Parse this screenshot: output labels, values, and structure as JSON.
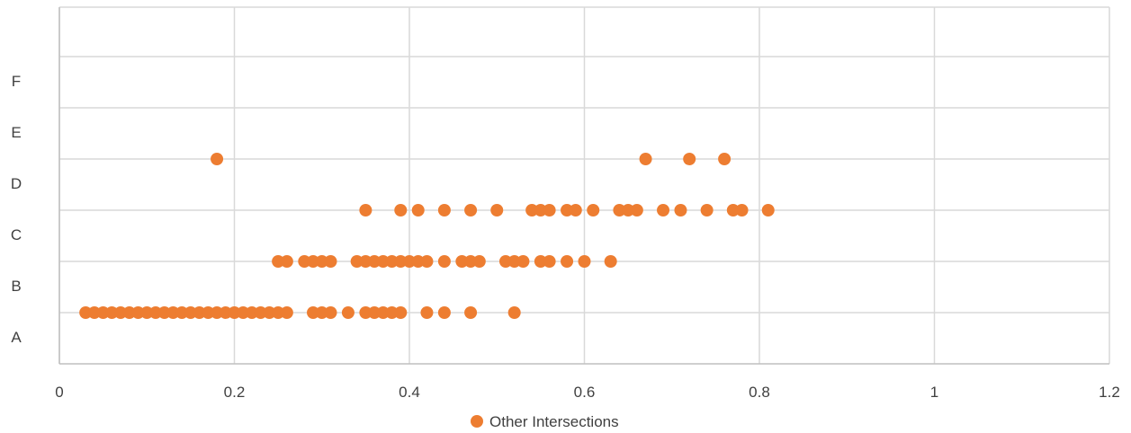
{
  "chart_data": {
    "type": "scatter",
    "title": "",
    "xlabel": "",
    "ylabel": "",
    "xlim": [
      0,
      1.2
    ],
    "x_ticks": [
      "0",
      "0.2",
      "0.4",
      "0.6",
      "0.8",
      "1",
      "1.2"
    ],
    "categories": [
      "A",
      "B",
      "C",
      "D",
      "E",
      "F"
    ],
    "grid": true,
    "legend_position": "bottom",
    "marker_color": "#ED7D31",
    "series": [
      {
        "name": "Other Intersections",
        "rows": [
          {
            "category": "A",
            "x": [
              0.03,
              0.04,
              0.05,
              0.06,
              0.07,
              0.08,
              0.09,
              0.1,
              0.11,
              0.12,
              0.13,
              0.14,
              0.15,
              0.16,
              0.17,
              0.18,
              0.19,
              0.2,
              0.21,
              0.22,
              0.23,
              0.24,
              0.25,
              0.26,
              0.29,
              0.3,
              0.31,
              0.33,
              0.35,
              0.36,
              0.37,
              0.38,
              0.39,
              0.42,
              0.44,
              0.47,
              0.52
            ]
          },
          {
            "category": "B",
            "x": [
              0.25,
              0.26,
              0.28,
              0.29,
              0.3,
              0.31,
              0.34,
              0.35,
              0.36,
              0.37,
              0.38,
              0.39,
              0.4,
              0.41,
              0.42,
              0.44,
              0.46,
              0.47,
              0.48,
              0.51,
              0.52,
              0.53,
              0.55,
              0.56,
              0.58,
              0.6,
              0.63
            ]
          },
          {
            "category": "C",
            "x": [
              0.35,
              0.39,
              0.41,
              0.44,
              0.47,
              0.5,
              0.54,
              0.55,
              0.56,
              0.58,
              0.59,
              0.61,
              0.64,
              0.65,
              0.66,
              0.69,
              0.71,
              0.74,
              0.77,
              0.78,
              0.81
            ]
          },
          {
            "category": "D",
            "x": [
              0.18,
              0.67,
              0.72,
              0.76
            ]
          },
          {
            "category": "E",
            "x": []
          },
          {
            "category": "F",
            "x": []
          }
        ]
      }
    ]
  }
}
